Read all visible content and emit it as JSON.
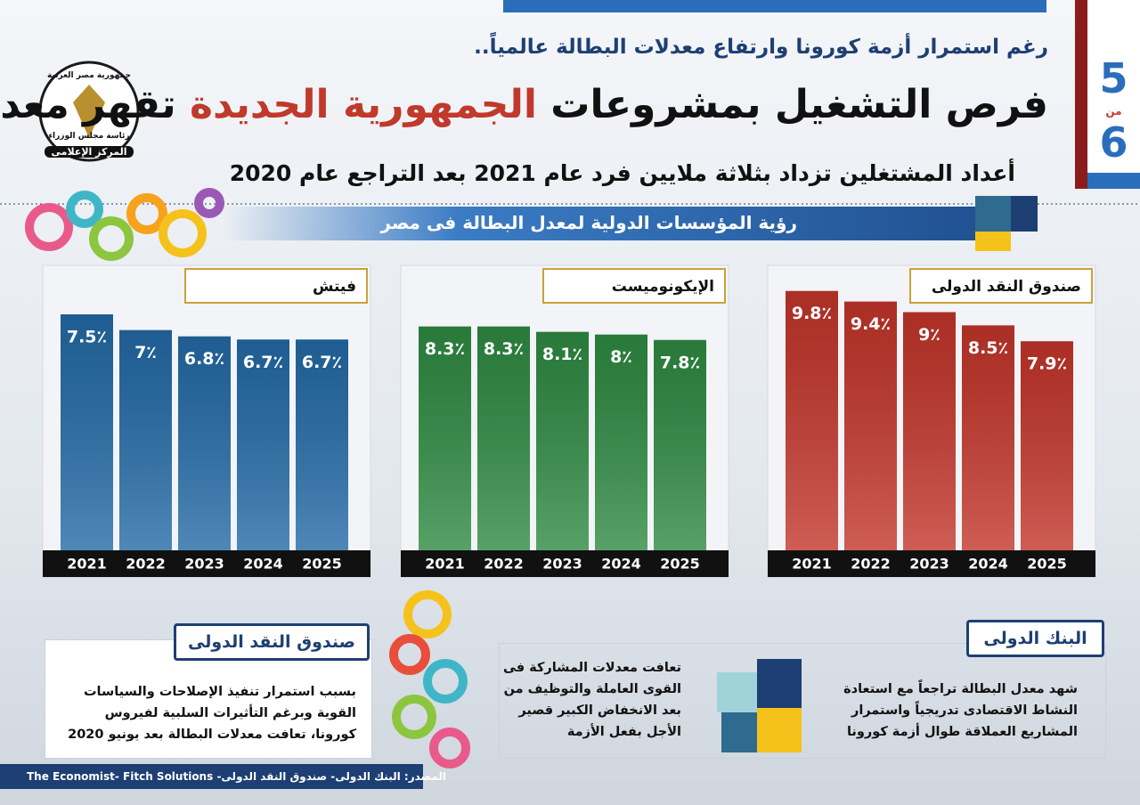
{
  "header": {
    "kicker": "رغم استمرار أزمة كورونا وارتفاع معدلات البطالة عالمياً..",
    "title_part1": "فرص التشغيل بمشروعات",
    "title_highlight": "الجمهورية الجديدة",
    "title_part2": "تقهر معدلات البطالة",
    "subtitle": "أعداد المشتغلين تزداد بثلاثة ملايين فرد عام 2021 بعد التراجع عام 2020",
    "page_current": "5",
    "page_of": "من",
    "page_total": "6",
    "logo_top": "جمهورية مصر العربية",
    "logo_middle": "رئاسة مجلس الوزراء",
    "logo_bottom": "المركز الإعلامى"
  },
  "section_title": "رؤية المؤسسات الدولية لمعدل البطالة فى مصر",
  "chart_data": [
    {
      "type": "bar",
      "title": "صندوق النقد الدولى",
      "categories": [
        "2021",
        "2022",
        "2023",
        "2024",
        "2025"
      ],
      "values": [
        9.8,
        9.4,
        9,
        8.5,
        7.9
      ],
      "value_labels": [
        "9.8٪",
        "9.4٪",
        "9٪",
        "8.5٪",
        "7.9٪"
      ],
      "color": "#c2352a",
      "ylim": [
        0,
        10.7
      ]
    },
    {
      "type": "bar",
      "title": "الإيكونوميست",
      "categories": [
        "2021",
        "2022",
        "2023",
        "2024",
        "2025"
      ],
      "values": [
        8.3,
        8.3,
        8.1,
        8,
        7.8
      ],
      "value_labels": [
        "8.3٪",
        "8.3٪",
        "8.1٪",
        "8٪",
        "7.8٪"
      ],
      "color": "#2e8a42",
      "ylim": [
        0,
        10.5
      ]
    },
    {
      "type": "bar",
      "title": "فيتش",
      "categories": [
        "2021",
        "2022",
        "2023",
        "2024",
        "2025"
      ],
      "values": [
        7.5,
        7,
        6.8,
        6.7,
        6.7
      ],
      "value_labels": [
        "7.5٪",
        "7٪",
        "6.8٪",
        "6.7٪",
        "6.7٪"
      ],
      "color": "#236aa6",
      "ylim": [
        0,
        9
      ]
    }
  ],
  "notes": {
    "world_bank": {
      "title": "البنك الدولى",
      "text_right": "شهد معدل البطالة تراجعاً مع استعادة النشاط الاقتصادى تدريجياً واستمرار المشاريع العملاقة طوال أزمة كورونا",
      "text_left": "تعافت معدلات المشاركة فى القوى العاملة والتوظيف من بعد الانخفاض الكبير قصير الأجل بفعل الأزمة"
    },
    "imf": {
      "title": "صندوق النقد الدولى",
      "text": "بسبب استمرار تنفيذ الإصلاحات والسياسات القوية وبرغم التأثيرات السلبية لفيروس كورونا، تعافت معدلات البطالة بعد يونيو 2020"
    }
  },
  "source": {
    "label": "المصدر: البنك الدولى- صندوق النقد الدولى-",
    "names": "The Economist- Fitch Solutions"
  }
}
